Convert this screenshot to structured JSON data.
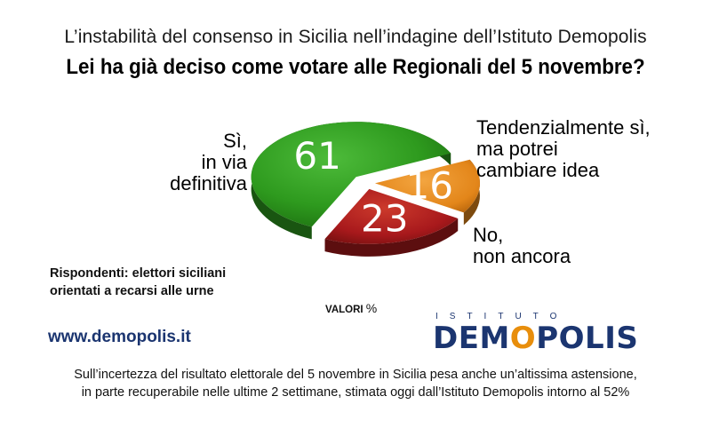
{
  "header": {
    "subtitle": "L’instabilità del consenso in Sicilia nell’indagine dell’Istituto Demopolis",
    "title": "Lei ha già deciso come votare alle Regionali del 5 novembre?"
  },
  "chart_data": {
    "type": "pie",
    "title": "Lei ha già deciso come votare alle Regionali del 5 novembre?",
    "unit_note": "VALORI %",
    "slices": [
      {
        "label_lines": [
          "Sì,",
          "in via",
          "definitiva"
        ],
        "value": 61,
        "color": "#2e9a1e"
      },
      {
        "label_lines": [
          "Tendenzialmente sì,",
          "ma potrei",
          "cambiare idea"
        ],
        "value": 16,
        "color": "#e3861a"
      },
      {
        "label_lines": [
          "No,",
          "non ancora"
        ],
        "value": 23,
        "color": "#a8191c"
      }
    ]
  },
  "notes": {
    "respondents": [
      "Rispondenti: elettori siciliani",
      "orientati a recarsi alle urne"
    ],
    "valori_label": "VALORI",
    "valori_pct": "%"
  },
  "branding": {
    "website": "www.demopolis.it",
    "logo_top": "ISTITUTO",
    "logo_left": "DEM",
    "logo_o": "O",
    "logo_right": "POLIS",
    "brand_color": "#1b3570",
    "accent_color": "#e88e0c"
  },
  "footer": {
    "lines": [
      "Sull’incertezza del risultato elettorale del 5 novembre in Sicilia pesa anche un’altissima astensione,",
      "in parte recuperabile nelle ultime 2 settimane, stimata oggi dall’Istituto Demopolis intorno al 52%"
    ]
  }
}
